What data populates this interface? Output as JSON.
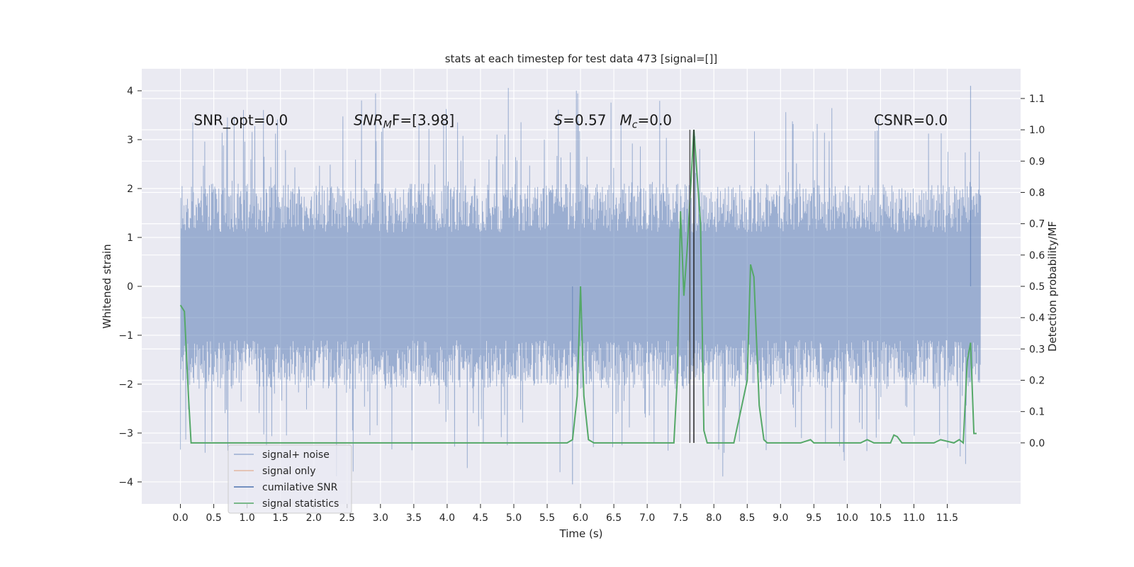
{
  "chart_data": {
    "type": "line",
    "title": "stats at each timestep for test data 473 [signal=[]]",
    "xlabel": "Time (s)",
    "ylabel_left": "Whitened strain",
    "ylabel_right": "Detection probability/MF",
    "xlim": [
      -0.58,
      12.6
    ],
    "ylim_left": [
      -4.45,
      4.45
    ],
    "ylim_right": [
      -0.195,
      1.195
    ],
    "x_ticks": [
      0.0,
      0.5,
      1.0,
      1.5,
      2.0,
      2.5,
      3.0,
      3.5,
      4.0,
      4.5,
      5.0,
      5.5,
      6.0,
      6.5,
      7.0,
      7.5,
      8.0,
      8.5,
      9.0,
      9.5,
      10.0,
      10.5,
      11.0,
      11.5
    ],
    "x_tick_labels": [
      "0.0",
      "0.5",
      "1.0",
      "1.5",
      "2.0",
      "2.5",
      "3.0",
      "3.5",
      "4.0",
      "4.5",
      "5.0",
      "5.5",
      "6.0",
      "6.5",
      "7.0",
      "7.5",
      "8.0",
      "8.5",
      "9.0",
      "9.5",
      "10.0",
      "10.5",
      "11.0",
      "11.5"
    ],
    "y_left_ticks": [
      -4,
      -3,
      -2,
      -1,
      0,
      1,
      2,
      3,
      4
    ],
    "y_left_tick_labels": [
      "−4",
      "−3",
      "−2",
      "−1",
      "0",
      "1",
      "2",
      "3",
      "4"
    ],
    "y_right_ticks": [
      0.0,
      0.1,
      0.2,
      0.3,
      0.4,
      0.5,
      0.6,
      0.7,
      0.8,
      0.9,
      1.0,
      1.1
    ],
    "y_right_tick_labels": [
      "0.0",
      "0.1",
      "0.2",
      "0.3",
      "0.4",
      "0.5",
      "0.6",
      "0.7",
      "0.8",
      "0.9",
      "1.0",
      "1.1"
    ],
    "grid": true,
    "legend_position": "lower-left",
    "legend": [
      {
        "label": "signal+ noise",
        "color": "#4c72b0",
        "opacity": 0.5
      },
      {
        "label": "signal only",
        "color": "#dd8452",
        "opacity": 0.5
      },
      {
        "label": "cumilative SNR",
        "color": "#4c72b0",
        "opacity": 1.0
      },
      {
        "label": "signal statistics",
        "color": "#55a868",
        "opacity": 1.0
      }
    ],
    "series": [
      {
        "name": "signal+ noise",
        "axis": "left",
        "color": "#4c72b0",
        "x_range": [
          0.0,
          12.0
        ],
        "typical_range": [
          -2.0,
          2.0
        ],
        "max": 4.1,
        "min": -4.05
      },
      {
        "name": "signal statistics",
        "axis": "right",
        "color": "#55a868",
        "x": [
          0.0,
          0.06,
          0.12,
          0.16,
          0.25,
          0.5,
          1.0,
          2.0,
          3.0,
          4.0,
          5.0,
          5.8,
          5.88,
          5.95,
          6.0,
          6.05,
          6.12,
          6.2,
          7.0,
          7.4,
          7.45,
          7.5,
          7.55,
          7.6,
          7.7,
          7.8,
          7.85,
          7.9,
          8.0,
          8.3,
          8.4,
          8.5,
          8.55,
          8.6,
          8.68,
          8.75,
          8.8,
          9.0,
          9.3,
          9.45,
          9.5,
          9.8,
          10.0,
          10.2,
          10.3,
          10.4,
          10.55,
          10.65,
          10.7,
          10.75,
          10.82,
          10.9,
          11.0,
          11.3,
          11.4,
          11.6,
          11.68,
          11.74,
          11.8,
          11.85,
          11.9,
          11.94
        ],
        "values": [
          0.44,
          0.42,
          0.15,
          0.0,
          0.0,
          0.0,
          0.0,
          0.0,
          0.0,
          0.0,
          0.0,
          0.0,
          0.01,
          0.15,
          0.5,
          0.15,
          0.01,
          0.0,
          0.0,
          0.0,
          0.2,
          0.74,
          0.47,
          0.62,
          1.0,
          0.7,
          0.04,
          0.0,
          0.0,
          0.0,
          0.1,
          0.2,
          0.57,
          0.53,
          0.12,
          0.01,
          0.0,
          0.0,
          0.0,
          0.01,
          0.0,
          0.0,
          0.0,
          0.0,
          0.01,
          0.0,
          0.0,
          0.0,
          0.025,
          0.02,
          0.0,
          0.0,
          0.0,
          0.0,
          0.01,
          0.0,
          0.01,
          0.0,
          0.26,
          0.32,
          0.03,
          0.03
        ]
      }
    ],
    "vertical_lines": [
      {
        "x": 7.64,
        "ymin": 0.0,
        "ymax": 1.0,
        "color": "#555555"
      },
      {
        "x": 7.7,
        "ymin": 0.0,
        "ymax": 1.0,
        "color": "#222222"
      }
    ],
    "annotations": [
      {
        "id": "snr-opt",
        "text": "SNR_opt=0.0",
        "x": 0.2,
        "y": 3.3
      },
      {
        "id": "snr-mf",
        "text": "",
        "x": 2.6,
        "y": 3.3
      },
      {
        "id": "s-mc",
        "text": "",
        "x": 5.6,
        "y": 3.3
      },
      {
        "id": "csnr",
        "text": "CSNR=0.0",
        "x": 10.4,
        "y": 3.3
      }
    ],
    "snr_mf": {
      "base": "SNR",
      "sub": "M",
      "rest": "F=[3.98]"
    },
    "s_mc": {
      "s_symbol": "S",
      "s_value": "=0.57   ",
      "m_symbol": "M",
      "m_sub": "c",
      "m_value": "=0.0"
    }
  }
}
